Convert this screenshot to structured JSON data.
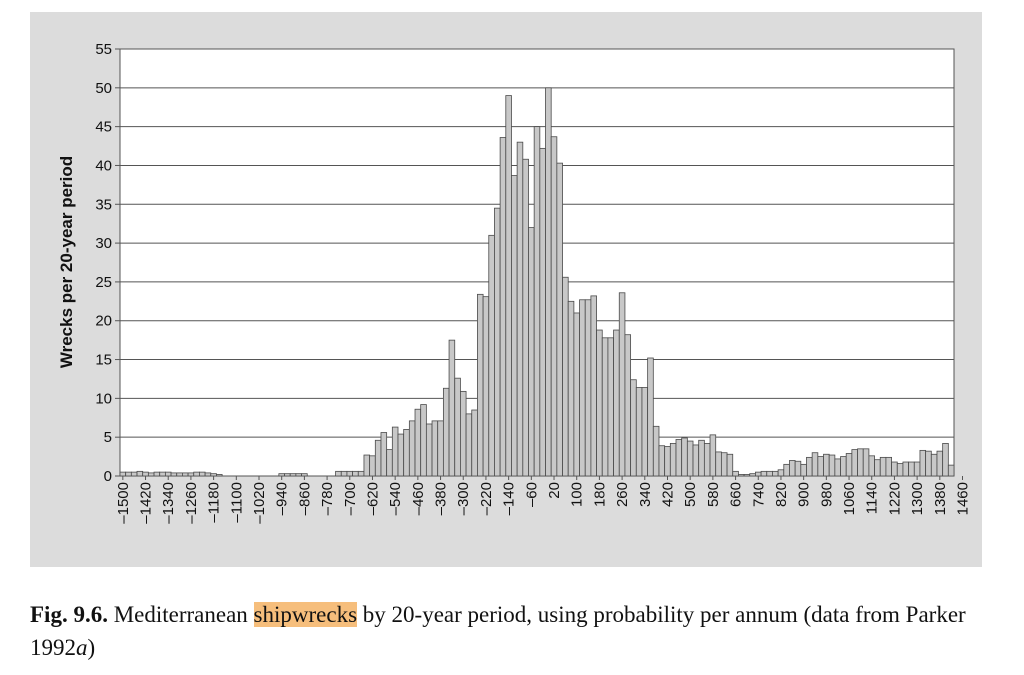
{
  "chart_data": {
    "type": "bar",
    "xlabel": "",
    "ylabel": "Wrecks per 20-year period",
    "ylim": [
      0,
      55
    ],
    "yticks": [
      0,
      5,
      10,
      15,
      20,
      25,
      30,
      35,
      40,
      45,
      50,
      55
    ],
    "grid": true,
    "x_start": -1500,
    "x_step": 20,
    "tick_labels": [
      "–1500",
      "–1420",
      "–1340",
      "–1260",
      "–1180",
      "–1100",
      "–1020",
      "–940",
      "–860",
      "–780",
      "–700",
      "–620",
      "–540",
      "–460",
      "–380",
      "–300",
      "–220",
      "–140",
      "–60",
      "20",
      "100",
      "180",
      "260",
      "340",
      "420",
      "500",
      "580",
      "660",
      "740",
      "820",
      "900",
      "980",
      "1060",
      "1140",
      "1220",
      "1300",
      "1380",
      "1460"
    ],
    "values": [
      0.5,
      0.5,
      0.5,
      0.6,
      0.5,
      0.4,
      0.5,
      0.5,
      0.5,
      0.4,
      0.4,
      0.4,
      0.4,
      0.5,
      0.5,
      0.4,
      0.3,
      0.2,
      0,
      0,
      0,
      0,
      0,
      0,
      0,
      0,
      0,
      0,
      0.3,
      0.3,
      0.3,
      0.3,
      0.3,
      0,
      0,
      0,
      0,
      0,
      0.6,
      0.6,
      0.6,
      0.6,
      0.6,
      2.7,
      2.6,
      4.6,
      5.6,
      3.4,
      6.3,
      5.4,
      6.0,
      7.1,
      8.6,
      9.2,
      6.7,
      7.1,
      7.1,
      11.3,
      17.5,
      12.6,
      10.9,
      8.0,
      8.5,
      23.4,
      23.1,
      31.0,
      34.5,
      43.6,
      49.0,
      38.7,
      43.0,
      40.8,
      32.0,
      45.0,
      42.2,
      50.0,
      43.7,
      40.3,
      25.6,
      22.5,
      21.0,
      22.7,
      22.7,
      23.2,
      18.8,
      17.8,
      17.8,
      18.8,
      23.6,
      18.2,
      12.4,
      11.4,
      11.4,
      15.2,
      6.4,
      3.9,
      3.8,
      4.2,
      4.7,
      4.9,
      4.5,
      4.0,
      4.6,
      4.2,
      5.3,
      3.1,
      3.0,
      2.8,
      0.6,
      0.2,
      0.2,
      0.3,
      0.5,
      0.6,
      0.6,
      0.6,
      0.8,
      1.5,
      2.0,
      1.9,
      1.5,
      2.4,
      3.0,
      2.5,
      2.8,
      2.7,
      2.2,
      2.5,
      2.9,
      3.4,
      3.5,
      3.5,
      2.6,
      2.1,
      2.4,
      2.4,
      1.8,
      1.6,
      1.8,
      1.8,
      1.8,
      3.3,
      3.2,
      2.8,
      3.2,
      4.2,
      1.4
    ]
  },
  "caption": {
    "figure_number": "Fig. 9.6.",
    "text_before_highlight": " Mediterranean ",
    "highlight": "shipwrecks",
    "text_after_highlight": " by 20-year period, using probability per annum (data from Parker 1992",
    "italic_suffix": "a",
    "closing": ")"
  }
}
